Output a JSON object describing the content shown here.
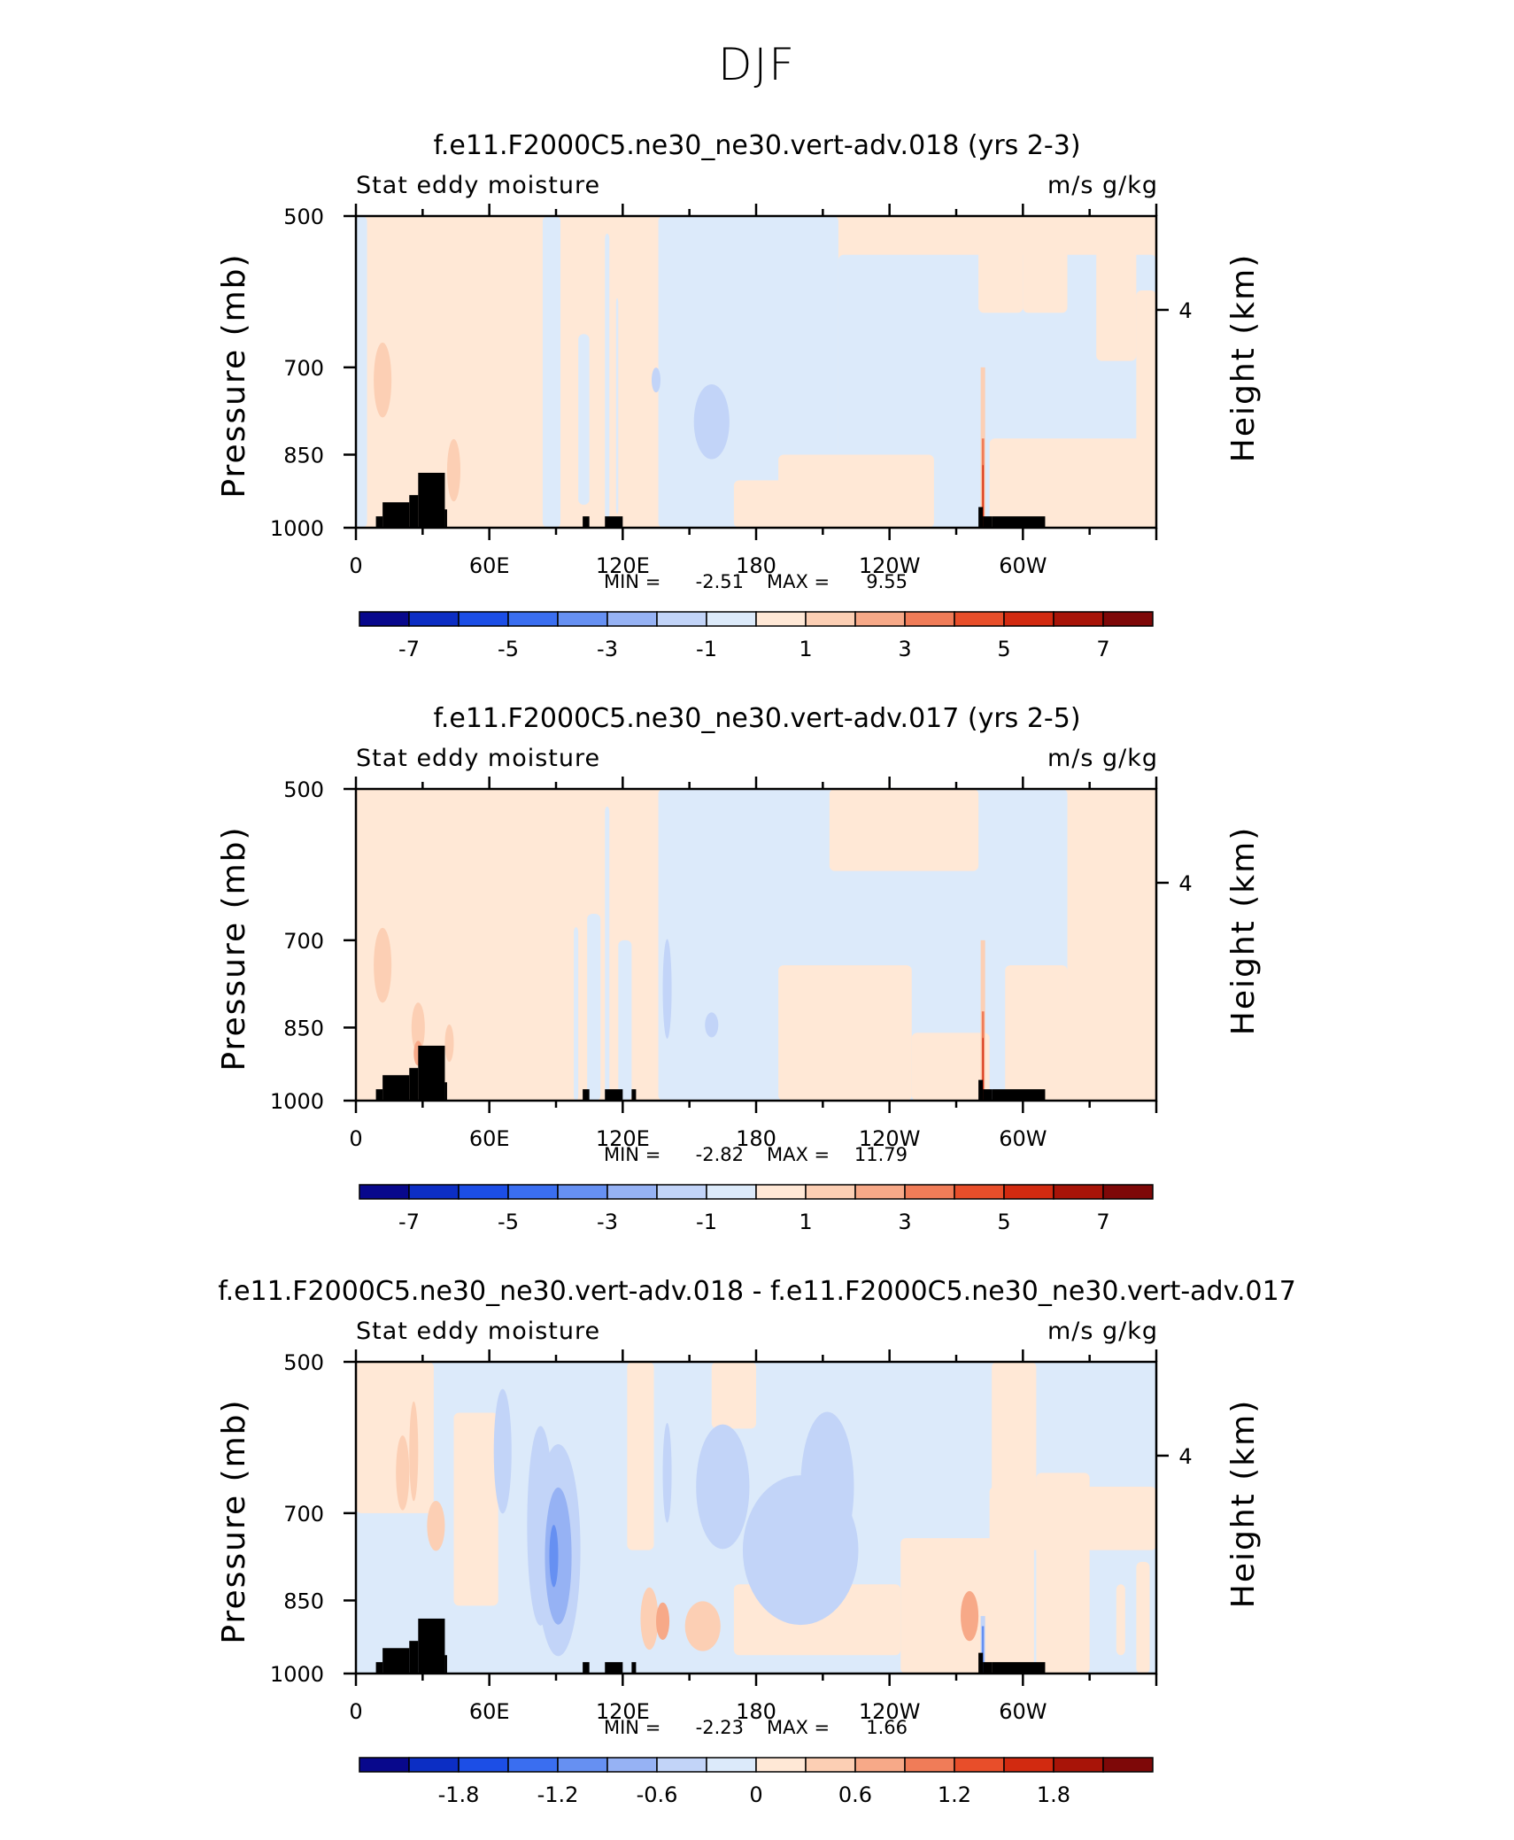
{
  "page": {
    "title": "DJF"
  },
  "chart_data": [
    {
      "type": "heatmap",
      "title": "f.e11.F2000C5.ne30_ne30.vert-adv.018 (yrs 2-3)",
      "left_label": "Stat eddy moisture",
      "right_label": "m/s g/kg",
      "ylabel": "Pressure (mb)",
      "y2label": "Height (km)",
      "ylim": [
        1000,
        500
      ],
      "yticks": [
        "500",
        "700",
        "850",
        "1000"
      ],
      "y2ticks": [
        "4"
      ],
      "xlim": [
        0,
        360
      ],
      "xticks": [
        "0",
        "60E",
        "120E",
        "180",
        "120W",
        "60W"
      ],
      "min_label": "MIN =",
      "min_value": "-2.51",
      "max_label": "MAX =",
      "max_value": "9.55",
      "colorbar_labels": [
        "-7",
        "-5",
        "-3",
        "-1",
        "1",
        "3",
        "5",
        "7"
      ]
    },
    {
      "type": "heatmap",
      "title": "f.e11.F2000C5.ne30_ne30.vert-adv.017 (yrs 2-5)",
      "left_label": "Stat eddy moisture",
      "right_label": "m/s g/kg",
      "ylabel": "Pressure (mb)",
      "y2label": "Height (km)",
      "ylim": [
        1000,
        500
      ],
      "yticks": [
        "500",
        "700",
        "850",
        "1000"
      ],
      "y2ticks": [
        "4"
      ],
      "xlim": [
        0,
        360
      ],
      "xticks": [
        "0",
        "60E",
        "120E",
        "180",
        "120W",
        "60W"
      ],
      "min_label": "MIN =",
      "min_value": "-2.82",
      "max_label": "MAX =",
      "max_value": "11.79",
      "colorbar_labels": [
        "-7",
        "-5",
        "-3",
        "-1",
        "1",
        "3",
        "5",
        "7"
      ]
    },
    {
      "type": "heatmap",
      "title": "f.e11.F2000C5.ne30_ne30.vert-adv.018 - f.e11.F2000C5.ne30_ne30.vert-adv.017",
      "left_label": "Stat eddy moisture",
      "right_label": "m/s g/kg",
      "ylabel": "Pressure (mb)",
      "y2label": "Height (km)",
      "ylim": [
        1000,
        500
      ],
      "yticks": [
        "500",
        "700",
        "850",
        "1000"
      ],
      "y2ticks": [
        "4"
      ],
      "xlim": [
        0,
        360
      ],
      "xticks": [
        "0",
        "60E",
        "120E",
        "180",
        "120W",
        "60W"
      ],
      "min_label": "MIN =",
      "min_value": "-2.23",
      "max_label": "MAX =",
      "max_value": "1.66",
      "colorbar_labels": [
        "-1.8",
        "-1.2",
        "-0.6",
        "0",
        "0.6",
        "1.2",
        "1.8"
      ]
    }
  ],
  "colors": {
    "palette": [
      "#08088c",
      "#0c2ec4",
      "#1c4ee6",
      "#3a6ef0",
      "#6690f2",
      "#96b2f4",
      "#c2d4f8",
      "#dceafa",
      "#ffe8d6",
      "#fccfb4",
      "#f7a988",
      "#f07c58",
      "#e84e2a",
      "#d22a10",
      "#a81408",
      "#7e0808"
    ],
    "terrain": "#000000"
  }
}
